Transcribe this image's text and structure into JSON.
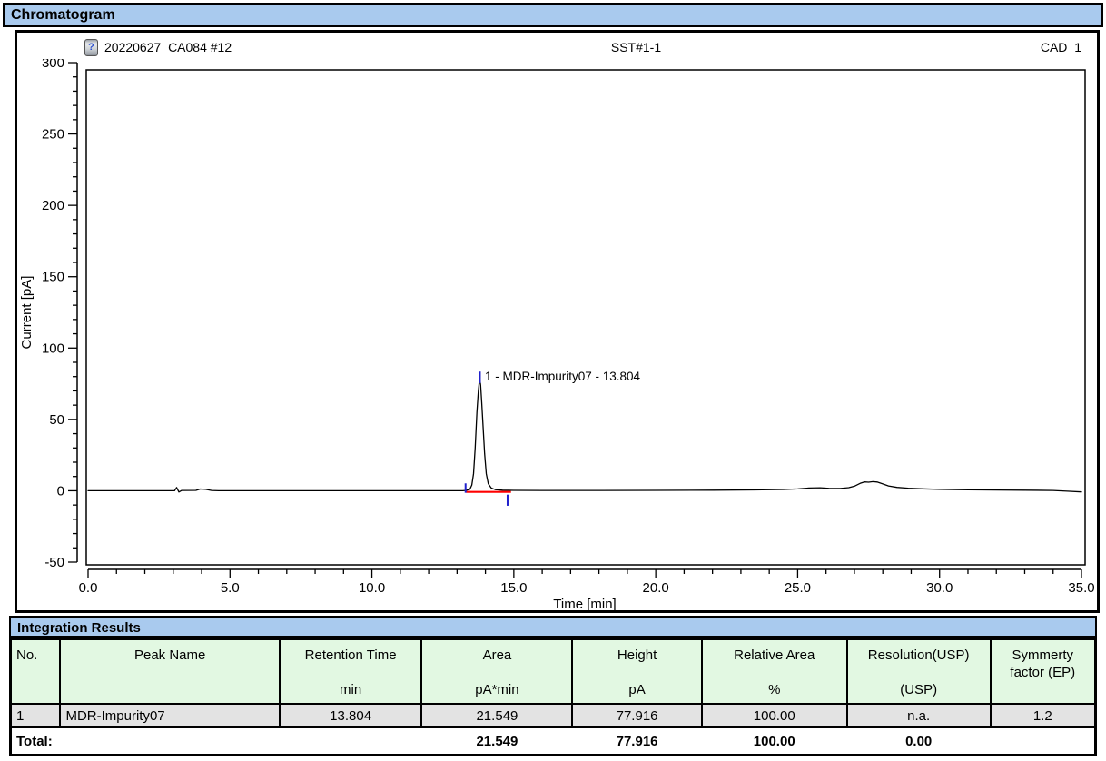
{
  "chromatogram": {
    "section_title": "Chromatogram",
    "header": {
      "injection_icon": "?",
      "run_name": "20220627_CA084 #12",
      "sample_label": "SST#1-1",
      "channel_label": "CAD_1"
    }
  },
  "chart_data": {
    "type": "line",
    "title": "",
    "xlabel": "Time [min]",
    "ylabel": "Current [pA]",
    "xlim": [
      0,
      35
    ],
    "ylim": [
      -50,
      300
    ],
    "x_major_step": 5,
    "x_minor_step": 1,
    "y_major_step": 50,
    "y_minor_step": 10,
    "x_tick_labels": [
      "0.0",
      "5.0",
      "10.0",
      "15.0",
      "20.0",
      "25.0",
      "30.0",
      "35.0"
    ],
    "y_tick_labels": [
      "-50",
      "0",
      "50",
      "100",
      "150",
      "200",
      "250",
      "300"
    ],
    "grid": "off",
    "series": [
      {
        "name": "CAD_1",
        "color": "#000000",
        "points": [
          [
            0,
            0
          ],
          [
            1,
            0
          ],
          [
            2,
            0
          ],
          [
            3,
            0
          ],
          [
            3.05,
            0
          ],
          [
            3.12,
            2.3
          ],
          [
            3.2,
            -0.9
          ],
          [
            3.3,
            0.2
          ],
          [
            3.8,
            0.3
          ],
          [
            3.95,
            1.2
          ],
          [
            4.15,
            1.0
          ],
          [
            4.35,
            0.2
          ],
          [
            4.6,
            0
          ],
          [
            6,
            0
          ],
          [
            8,
            0
          ],
          [
            10,
            0
          ],
          [
            12,
            0
          ],
          [
            13.2,
            0
          ],
          [
            13.3,
            0.2
          ],
          [
            13.45,
            1
          ],
          [
            13.52,
            4
          ],
          [
            13.58,
            12
          ],
          [
            13.64,
            30
          ],
          [
            13.7,
            55
          ],
          [
            13.75,
            70
          ],
          [
            13.78,
            75.8
          ],
          [
            13.804,
            77.916
          ],
          [
            13.83,
            74
          ],
          [
            13.87,
            62
          ],
          [
            13.92,
            44
          ],
          [
            13.97,
            26
          ],
          [
            14.03,
            12
          ],
          [
            14.1,
            5
          ],
          [
            14.2,
            2
          ],
          [
            14.35,
            0.8
          ],
          [
            14.6,
            0.4
          ],
          [
            15,
            0.3
          ],
          [
            16,
            0.2
          ],
          [
            18,
            0.2
          ],
          [
            20,
            0.3
          ],
          [
            22,
            0.4
          ],
          [
            23.5,
            0.6
          ],
          [
            24.5,
            0.9
          ],
          [
            25,
            1.3
          ],
          [
            25.4,
            1.9
          ],
          [
            25.8,
            2.1
          ],
          [
            26.1,
            1.7
          ],
          [
            26.5,
            1.6
          ],
          [
            26.8,
            2.2
          ],
          [
            27,
            3.2
          ],
          [
            27.2,
            5.2
          ],
          [
            27.35,
            6.2
          ],
          [
            27.5,
            6.0
          ],
          [
            27.65,
            6.4
          ],
          [
            27.8,
            6.1
          ],
          [
            28,
            4.8
          ],
          [
            28.2,
            3.4
          ],
          [
            28.5,
            2.4
          ],
          [
            28.9,
            1.8
          ],
          [
            29.3,
            1.4
          ],
          [
            30,
            1.0
          ],
          [
            31,
            0.7
          ],
          [
            32,
            0.5
          ],
          [
            33,
            0.4
          ],
          [
            34,
            0.2
          ],
          [
            34.5,
            -0.3
          ],
          [
            35,
            -0.8
          ]
        ]
      }
    ],
    "integration_baseline": {
      "color": "#ff0000",
      "x_start": 13.32,
      "x_end": 14.9,
      "y": -0.8
    },
    "peak_markers": {
      "color": "#2020cc",
      "start": {
        "x": 13.3,
        "y1": -1.4,
        "y2": 5.2
      },
      "end": {
        "x": 14.78,
        "y1": -2.7,
        "y2": -10.5
      },
      "apex": {
        "x": 13.804,
        "y1": 75.4,
        "y2": 83.5
      }
    },
    "peak_label": {
      "text": "1 - MDR-Impurity07 - 13.804",
      "x": 13.98,
      "y": 80.5
    }
  },
  "results_table": {
    "title": "Integration Results",
    "columns": [
      {
        "name": "No.",
        "unit": ""
      },
      {
        "name": "Peak Name",
        "unit": ""
      },
      {
        "name": "Retention Time",
        "unit": "min"
      },
      {
        "name": "Area",
        "unit": "pA*min"
      },
      {
        "name": "Height",
        "unit": "pA"
      },
      {
        "name": "Relative Area",
        "unit": "%"
      },
      {
        "name": "Resolution(USP)",
        "unit": "(USP)"
      },
      {
        "name": "Symmerty factor (EP)",
        "unit": ""
      }
    ],
    "rows": [
      {
        "no": "1",
        "peak_name": "MDR-Impurity07",
        "retention_time": "13.804",
        "area": "21.549",
        "height": "77.916",
        "relative_area": "100.00",
        "resolution_usp": "n.a.",
        "symmetry_factor": "1.2"
      }
    ],
    "total": {
      "label": "Total:",
      "area": "21.549",
      "height": "77.916",
      "relative_area": "100.00",
      "resolution_usp": "0.00",
      "symmetry_factor": ""
    }
  },
  "colors": {
    "section_bar_bg": "#a9caee",
    "table_header_bg": "#e2f8e2",
    "data_row_bg": "#e3e3e3",
    "trace": "#000000",
    "integration_baseline": "#ff0000",
    "peak_marker": "#2020cc"
  }
}
